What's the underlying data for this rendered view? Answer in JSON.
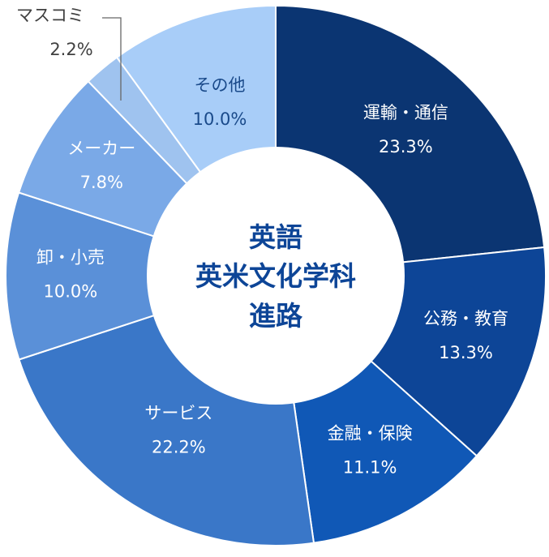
{
  "chart_data": {
    "type": "pie",
    "title_lines": [
      "英語",
      "英米文化学科",
      "進路"
    ],
    "slices": [
      {
        "label": "運輸・通信",
        "value": 23.3,
        "value_label": "23.3%",
        "color": "#0b3572",
        "text_color": "#ffffff"
      },
      {
        "label": "公務・教育",
        "value": 13.3,
        "value_label": "13.3%",
        "color": "#0d4597",
        "text_color": "#ffffff"
      },
      {
        "label": "金融・保険",
        "value": 11.1,
        "value_label": "11.1%",
        "color": "#1058b6",
        "text_color": "#ffffff"
      },
      {
        "label": "サービス",
        "value": 22.2,
        "value_label": "22.2%",
        "color": "#3a77c8",
        "text_color": "#ffffff"
      },
      {
        "label": "卸・小売",
        "value": 10.0,
        "value_label": "10.0%",
        "color": "#5a90d8",
        "text_color": "#ffffff"
      },
      {
        "label": "メーカー",
        "value": 7.8,
        "value_label": "7.8%",
        "color": "#7aa9e7",
        "text_color": "#ffffff"
      },
      {
        "label": "マスコミ",
        "value": 2.2,
        "value_label": "2.2%",
        "color": "#9fc3ef",
        "text_color": "#404040"
      },
      {
        "label": "その他",
        "value": 10.0,
        "value_label": "10.0%",
        "color": "#a8cdf8",
        "text_color": "#1a4a8a"
      }
    ],
    "title_color": "#0d4597"
  }
}
